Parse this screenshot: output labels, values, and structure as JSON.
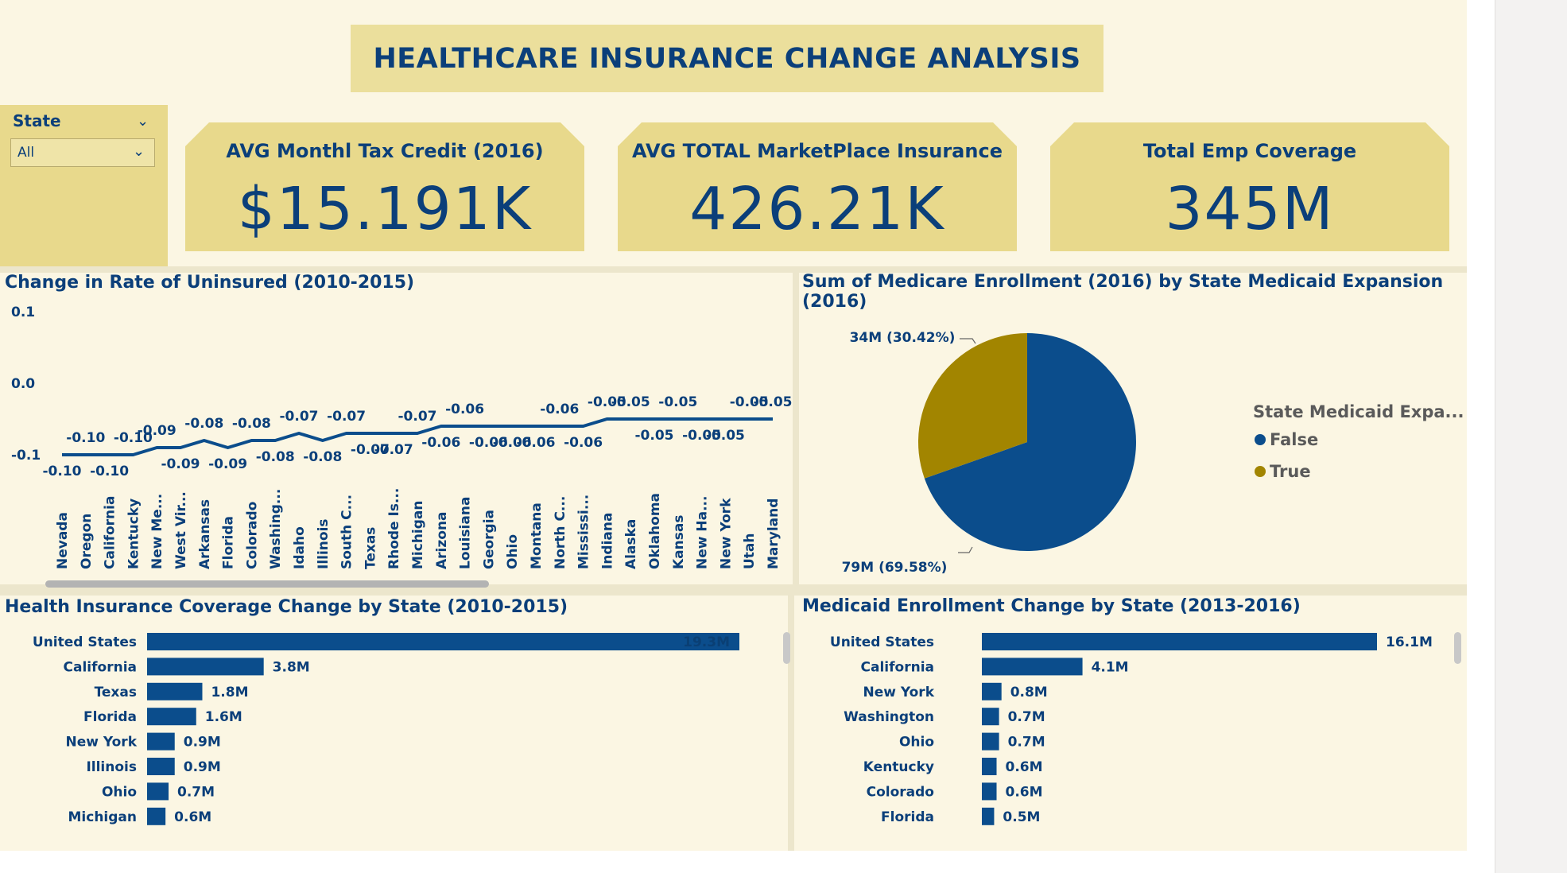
{
  "title": "HEALTHCARE INSURANCE CHANGE ANALYSIS",
  "slicer": {
    "label": "State",
    "value": "All"
  },
  "kpis": [
    {
      "label": "AVG Monthl Tax Credit (2016)",
      "value": "$15.191K"
    },
    {
      "label": "AVG TOTAL MarketPlace Insurance",
      "value": "426.21K"
    },
    {
      "label": "Total Emp Coverage",
      "value": "345M"
    }
  ],
  "colors": {
    "navy": "#0b4d8c",
    "gold": "#a28500",
    "canvas": "#fbf6e3",
    "card": "#e8d98c"
  },
  "chart_data": [
    {
      "type": "line",
      "title": "Change in Rate of Uninsured (2010-2015)",
      "ylim": [
        -0.1,
        0.1
      ],
      "yticks": [
        "0.1",
        "0.0",
        "-0.1"
      ],
      "yticks_values": [
        0.1,
        0.0,
        -0.1
      ],
      "categories": [
        "Nevada",
        "Oregon",
        "California",
        "Kentucky",
        "New Me...",
        "West Vir...",
        "Arkansas",
        "Florida",
        "Colorado",
        "Washing...",
        "Idaho",
        "Illinois",
        "South C...",
        "Texas",
        "Rhode Is...",
        "Michigan",
        "Arizona",
        "Louisiana",
        "Georgia",
        "Ohio",
        "Montana",
        "North C...",
        "Mississi...",
        "Indiana",
        "Alaska",
        "Oklahoma",
        "Kansas",
        "New Ha...",
        "New York",
        "Utah",
        "Maryland"
      ],
      "values": [
        -0.1,
        -0.1,
        -0.1,
        -0.1,
        -0.09,
        -0.09,
        -0.08,
        -0.09,
        -0.08,
        -0.08,
        -0.07,
        -0.08,
        -0.07,
        -0.07,
        -0.07,
        -0.07,
        -0.06,
        -0.06,
        -0.06,
        -0.06,
        -0.06,
        -0.06,
        -0.06,
        -0.05,
        -0.05,
        -0.05,
        -0.05,
        -0.05,
        -0.05,
        -0.05,
        -0.05
      ],
      "labels": [
        "-0.10",
        "-0.10",
        "-0.10",
        "-0.10",
        "-0.09",
        "-0.09",
        "-0.08",
        "-0.09",
        "-0.08",
        "-0.08",
        "-0.07",
        "-0.08",
        "-0.07",
        "-0.07",
        "-0.07",
        "-0.07",
        "-0.06",
        "-0.06",
        "-0.06",
        "-0.06",
        "-0.06",
        "-0.06",
        "-0.06",
        "-0.05",
        "-0.05",
        "-0.05",
        "-0.05",
        "-0.05",
        "-0.05",
        "-0.05",
        "-0.05"
      ],
      "label_above": [
        false,
        true,
        false,
        true,
        true,
        false,
        true,
        false,
        true,
        false,
        true,
        false,
        true,
        false,
        false,
        true,
        false,
        true,
        false,
        false,
        false,
        true,
        false,
        true,
        true,
        false,
        true,
        false,
        false,
        true,
        true
      ]
    },
    {
      "type": "pie",
      "title": "Sum of Medicare Enrollment (2016) by State Medicaid Expansion (2016)",
      "legend_title": "State Medicaid Expa...",
      "legend_position": "right",
      "slices": [
        {
          "name": "False",
          "value": 79,
          "percent": 69.58,
          "label": "79M (69.58%)",
          "color": "#0b4d8c"
        },
        {
          "name": "True",
          "value": 34,
          "percent": 30.42,
          "label": "34M (30.42%)",
          "color": "#a28500"
        }
      ]
    },
    {
      "type": "bar",
      "orientation": "horizontal",
      "title": "Health Insurance Coverage Change by State (2010-2015)",
      "categories": [
        "United States",
        "California",
        "Texas",
        "Florida",
        "New York",
        "Illinois",
        "Ohio",
        "Michigan"
      ],
      "values": [
        19.3,
        3.8,
        1.8,
        1.6,
        0.9,
        0.9,
        0.7,
        0.6
      ],
      "labels": [
        "19.3M",
        "3.8M",
        "1.8M",
        "1.6M",
        "0.9M",
        "0.9M",
        "0.7M",
        "0.6M"
      ],
      "xlim": [
        0,
        19.3
      ]
    },
    {
      "type": "bar",
      "orientation": "horizontal",
      "title": "Medicaid Enrollment Change by State (2013-2016)",
      "categories": [
        "United States",
        "California",
        "New York",
        "Washington",
        "Ohio",
        "Kentucky",
        "Colorado",
        "Florida"
      ],
      "values": [
        16.1,
        4.1,
        0.8,
        0.7,
        0.7,
        0.6,
        0.6,
        0.5
      ],
      "labels": [
        "16.1M",
        "4.1M",
        "0.8M",
        "0.7M",
        "0.7M",
        "0.6M",
        "0.6M",
        "0.5M"
      ],
      "xlim": [
        0,
        16.1
      ]
    }
  ]
}
